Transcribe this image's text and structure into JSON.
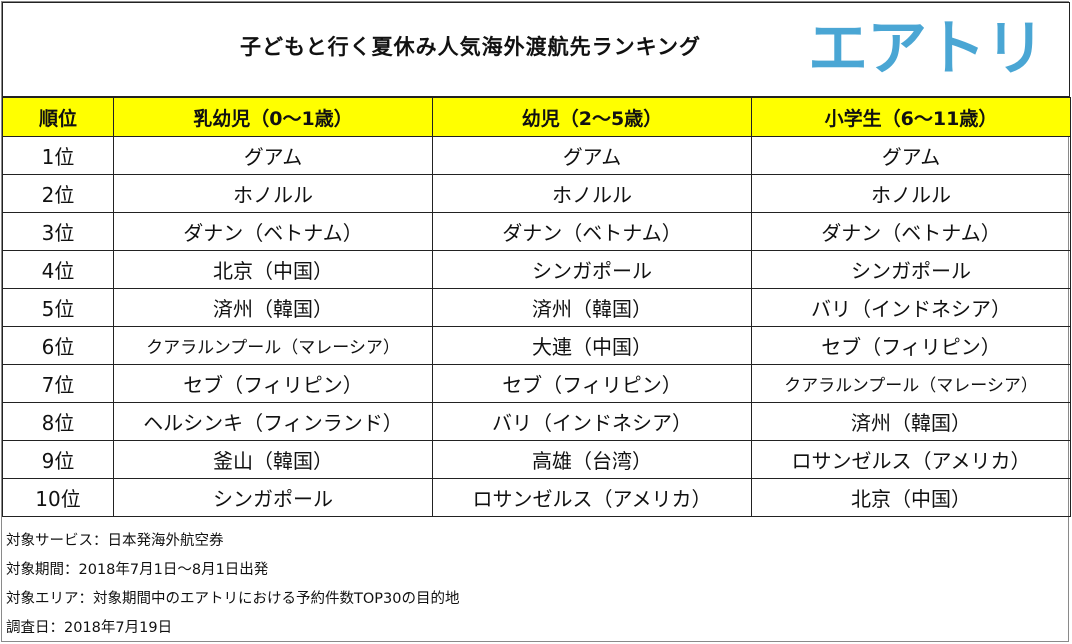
{
  "title": "子どもと行く夏休み人気海外渡航先ランキング",
  "logo": "エアトリ",
  "colors": {
    "header_bg": "#ffff00",
    "logo": "#4aa6d4"
  },
  "table": {
    "headers": [
      "順位",
      "乳幼児（0～1歳）",
      "幼児（2～5歳）",
      "小学生（6～11歳）"
    ],
    "rows": [
      [
        "1位",
        "グアム",
        "グアム",
        "グアム"
      ],
      [
        "2位",
        "ホノルル",
        "ホノルル",
        "ホノルル"
      ],
      [
        "3位",
        "ダナン（ベトナム）",
        "ダナン（ベトナム）",
        "ダナン（ベトナム）"
      ],
      [
        "4位",
        "北京（中国）",
        "シンガポール",
        "シンガポール"
      ],
      [
        "5位",
        "済州（韓国）",
        "済州（韓国）",
        "バリ（インドネシア）"
      ],
      [
        "6位",
        "クアラルンプール（マレーシア）",
        "大連（中国）",
        "セブ（フィリピン）"
      ],
      [
        "7位",
        "セブ（フィリピン）",
        "セブ（フィリピン）",
        "クアラルンプール（マレーシア）"
      ],
      [
        "8位",
        "ヘルシンキ（フィンランド）",
        "バリ（インドネシア）",
        "済州（韓国）"
      ],
      [
        "9位",
        "釜山（韓国）",
        "高雄（台湾）",
        "ロサンゼルス（アメリカ）"
      ],
      [
        "10位",
        "シンガポール",
        "ロサンゼルス（アメリカ）",
        "北京（中国）"
      ]
    ]
  },
  "notes": [
    "対象サービス：日本発海外航空券",
    "対象期間：2018年7月1日～8月1日出発",
    "対象エリア：対象期間中のエアトリにおける予約件数TOP30の目的地",
    "調査日：2018年7月19日"
  ]
}
